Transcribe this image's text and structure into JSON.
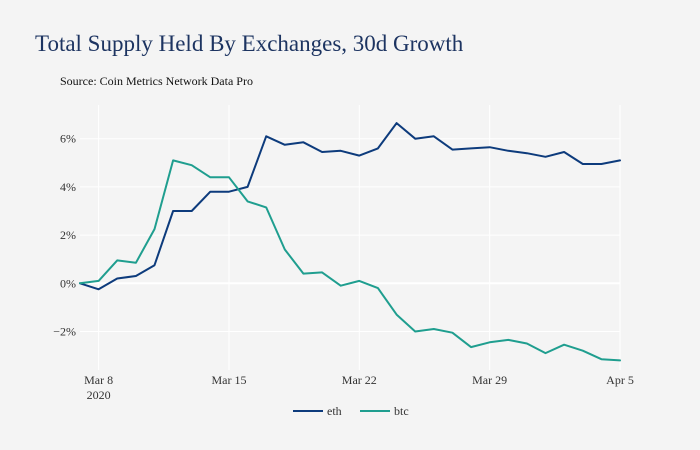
{
  "chart_data": {
    "type": "line",
    "title": "Total Supply Held By Exchanges, 30d Growth",
    "subtitle": "Source: Coin Metrics Network Data Pro",
    "x_start": "2020-03-07",
    "x_range_days": [
      0,
      29
    ],
    "ylim": [
      -3.6,
      7.4
    ],
    "y_ticks": [
      {
        "value": -2,
        "label": "−2%"
      },
      {
        "value": 0,
        "label": "0%"
      },
      {
        "value": 2,
        "label": "2%"
      },
      {
        "value": 4,
        "label": "4%"
      },
      {
        "value": 6,
        "label": "6%"
      }
    ],
    "x_ticks": [
      {
        "day": 1,
        "label": "Mar 8",
        "sublabel": "2020"
      },
      {
        "day": 8,
        "label": "Mar 15",
        "sublabel": ""
      },
      {
        "day": 15,
        "label": "Mar 22",
        "sublabel": ""
      },
      {
        "day": 22,
        "label": "Mar 29",
        "sublabel": ""
      },
      {
        "day": 29,
        "label": "Apr 5",
        "sublabel": ""
      }
    ],
    "series": [
      {
        "name": "eth",
        "color": "#0d3b7c",
        "x": [
          0,
          1,
          2,
          3,
          4,
          5,
          6,
          7,
          8,
          9,
          10,
          11,
          12,
          13,
          14,
          15,
          16,
          17,
          18,
          19,
          20,
          21,
          22,
          23,
          24,
          25,
          26,
          27,
          28,
          29
        ],
        "values": [
          0.0,
          -0.25,
          0.2,
          0.3,
          0.75,
          3.0,
          3.0,
          3.8,
          3.8,
          4.0,
          6.1,
          5.75,
          5.85,
          5.45,
          5.5,
          5.3,
          5.6,
          6.65,
          6.0,
          6.1,
          5.55,
          5.6,
          5.65,
          5.5,
          5.4,
          5.25,
          5.45,
          4.95,
          4.95,
          5.1
        ]
      },
      {
        "name": "btc",
        "color": "#1f9e8f",
        "x": [
          0,
          1,
          2,
          3,
          4,
          5,
          6,
          7,
          8,
          9,
          10,
          11,
          12,
          13,
          14,
          15,
          16,
          17,
          18,
          19,
          20,
          21,
          22,
          23,
          24,
          25,
          26,
          27,
          28,
          29
        ],
        "values": [
          0.0,
          0.1,
          0.95,
          0.85,
          2.25,
          5.1,
          4.9,
          4.4,
          4.4,
          3.4,
          3.15,
          1.4,
          0.4,
          0.45,
          -0.1,
          0.1,
          -0.2,
          -1.3,
          -2.0,
          -1.9,
          -2.05,
          -2.65,
          -2.45,
          -2.35,
          -2.5,
          -2.9,
          -2.55,
          -2.8,
          -3.15,
          -3.2
        ]
      }
    ],
    "legend_position": "bottom-center"
  }
}
